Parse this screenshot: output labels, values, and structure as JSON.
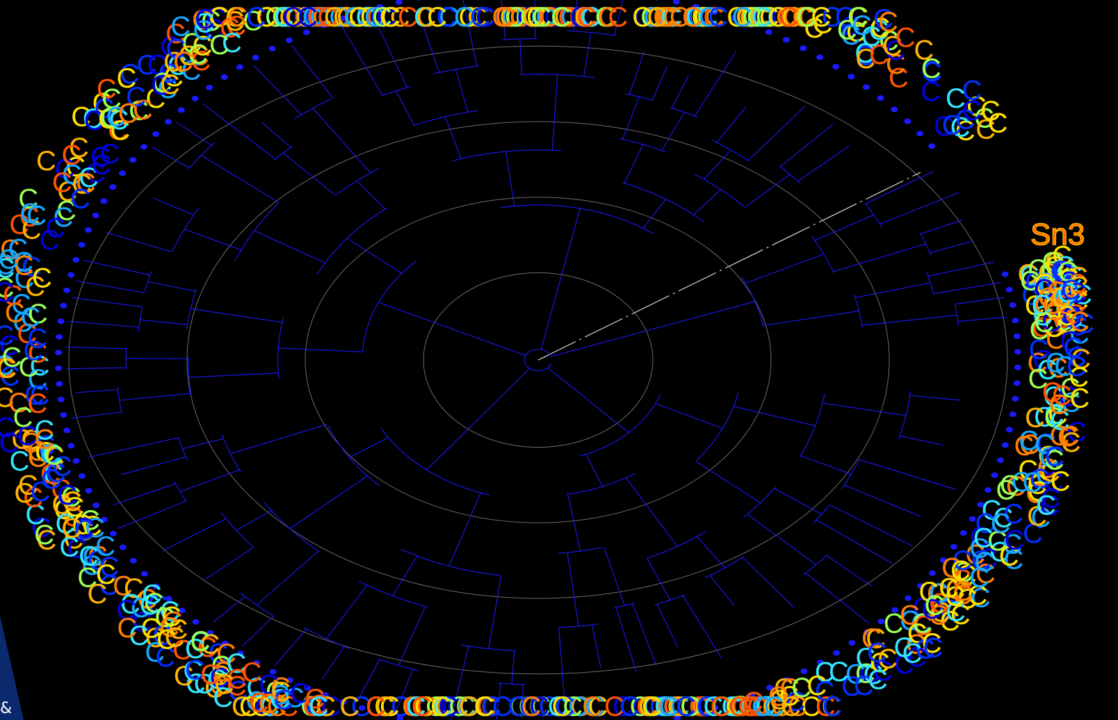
{
  "view": {
    "type": "circular-phylogenetic-tree",
    "background": "#000000",
    "branch_color": "#1a1aff",
    "ring_color": "#8a8a8a",
    "scale_line_color": "#cccccc",
    "leaf_palette": [
      "#ff7f00",
      "#ffb400",
      "#ffe100",
      "#9cff57",
      "#33e6ff",
      "#17a7ff",
      "#0030ff",
      "#0000e0",
      "#ff5500"
    ]
  },
  "labels": {
    "highlight": "Sn3",
    "corner": "&"
  },
  "icons": {
    "leaf_marker": "leaf-dot-icon"
  }
}
